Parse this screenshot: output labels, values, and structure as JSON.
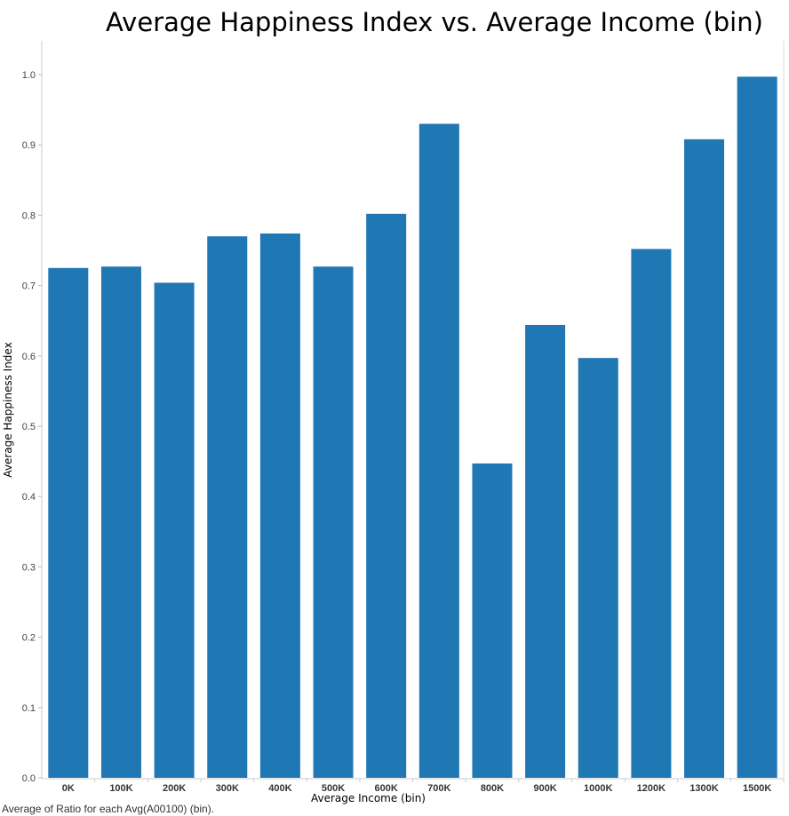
{
  "chart_data": {
    "type": "bar",
    "title": "Average Happiness Index vs. Average Income (bin)",
    "xlabel": "Average Income (bin)",
    "ylabel": "Average Happiness Index",
    "categories": [
      "0K",
      "100K",
      "200K",
      "300K",
      "400K",
      "500K",
      "600K",
      "700K",
      "800K",
      "900K",
      "1000K",
      "1200K",
      "1300K",
      "1500K"
    ],
    "values": [
      0.725,
      0.727,
      0.704,
      0.77,
      0.774,
      0.727,
      0.802,
      0.93,
      0.447,
      0.644,
      0.597,
      0.752,
      0.908,
      0.997
    ],
    "ylim": [
      0,
      1.0
    ],
    "yticks": [
      "0.0",
      "0.1",
      "0.2",
      "0.3",
      "0.4",
      "0.5",
      "0.6",
      "0.7",
      "0.8",
      "0.9",
      "1.0"
    ],
    "bar_color": "#1f77b4",
    "grid": false,
    "caption": "Average of Ratio for each Avg(A00100) (bin)."
  }
}
